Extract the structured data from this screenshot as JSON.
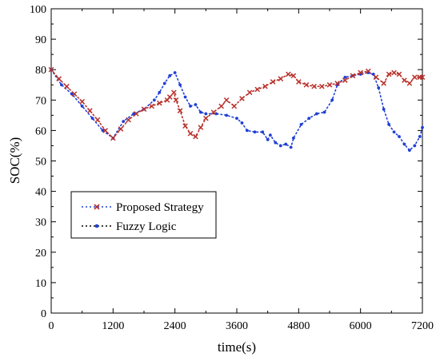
{
  "chart_data": {
    "type": "scatter",
    "title": "",
    "xlabel": "time(s)",
    "ylabel": "SOC(%)",
    "xlim": [
      0,
      7200
    ],
    "ylim": [
      0,
      100
    ],
    "xticks": [
      0,
      1200,
      2400,
      3600,
      4800,
      6000,
      7200
    ],
    "xtick_labels": [
      "0",
      "1200",
      "2400",
      "3600",
      "4800",
      "6000",
      "7200"
    ],
    "yticks": [
      0,
      10,
      20,
      30,
      40,
      50,
      60,
      70,
      80,
      90,
      100
    ],
    "ytick_labels": [
      "0",
      "10",
      "20",
      "30",
      "40",
      "50",
      "60",
      "70",
      "80",
      "90",
      "100"
    ],
    "grid": false,
    "legend_position": "lower-left",
    "series": [
      {
        "name": "Proposed Strategy",
        "marker": "x",
        "line_color": "#1f3fd6",
        "marker_color": "#b8322c",
        "x": [
          0,
          150,
          300,
          450,
          600,
          750,
          900,
          1050,
          1200,
          1350,
          1500,
          1650,
          1800,
          1950,
          2100,
          2250,
          2300,
          2380,
          2420,
          2500,
          2600,
          2700,
          2800,
          2900,
          3000,
          3150,
          3300,
          3400,
          3550,
          3700,
          3850,
          4000,
          4150,
          4300,
          4450,
          4600,
          4700,
          4800,
          4950,
          5100,
          5250,
          5400,
          5550,
          5700,
          5850,
          6000,
          6150,
          6300,
          6450,
          6550,
          6650,
          6750,
          6850,
          6950,
          7050,
          7150,
          7200
        ],
        "y": [
          80,
          77,
          74.5,
          72,
          69.5,
          66.5,
          63.5,
          60,
          57.5,
          60.5,
          63.5,
          65.5,
          67,
          68,
          69,
          70,
          71,
          72.5,
          70,
          66.5,
          61.5,
          59,
          58,
          61,
          64,
          66,
          68,
          70,
          68,
          70.5,
          72.5,
          73.5,
          74.5,
          76,
          77,
          78.5,
          78,
          76,
          75,
          74.5,
          74.5,
          75,
          75.5,
          76.5,
          78,
          79,
          79.5,
          77.5,
          75.5,
          78.5,
          79,
          78.5,
          76.5,
          75.5,
          77.5,
          77.5,
          77.5
        ]
      },
      {
        "name": "Fuzzy Logic",
        "marker": "dot",
        "line_color": "#000000",
        "marker_color": "#1f3fd6",
        "x": [
          0,
          200,
          400,
          600,
          800,
          1000,
          1200,
          1400,
          1600,
          1800,
          2000,
          2100,
          2200,
          2300,
          2400,
          2500,
          2600,
          2700,
          2800,
          2900,
          3000,
          3200,
          3400,
          3600,
          3700,
          3800,
          3950,
          4100,
          4200,
          4250,
          4350,
          4450,
          4550,
          4650,
          4700,
          4850,
          5000,
          5150,
          5300,
          5450,
          5550,
          5700,
          5850,
          6000,
          6150,
          6250,
          6350,
          6450,
          6550,
          6650,
          6750,
          6850,
          6950,
          7050,
          7150,
          7200
        ],
        "y": [
          80,
          75,
          72,
          68,
          64,
          60,
          57.5,
          63,
          65.5,
          67,
          70,
          72.5,
          75.5,
          78,
          79,
          75,
          71,
          68,
          68.5,
          66,
          65.5,
          65.5,
          65,
          64,
          62.5,
          60,
          59.5,
          59.5,
          57,
          58.5,
          56,
          55,
          55.5,
          54.5,
          57.5,
          62,
          64,
          65.5,
          66,
          70,
          75,
          77.5,
          78,
          78.5,
          79,
          78.5,
          74,
          67,
          62,
          59.5,
          58,
          55.5,
          53.5,
          55,
          58,
          61
        ]
      }
    ]
  }
}
